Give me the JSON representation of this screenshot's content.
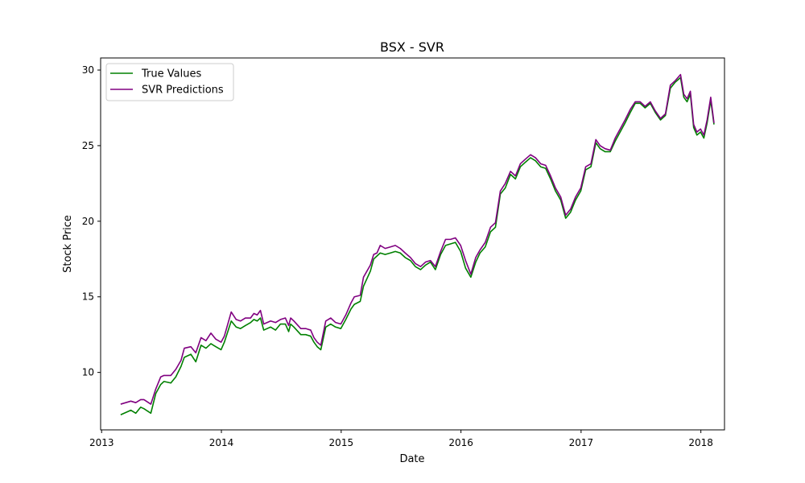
{
  "chart_data": {
    "type": "line",
    "title": "BSX - SVR",
    "xlabel": "Date",
    "ylabel": "Stock Price",
    "xlim": [
      "2012-12-29",
      "2018-03-14"
    ],
    "ylim": [
      6.2,
      30.8
    ],
    "x_ticks": [
      "2013",
      "2014",
      "2015",
      "2016",
      "2017",
      "2018"
    ],
    "y_ticks": [
      10,
      15,
      20,
      25,
      30
    ],
    "grid": false,
    "legend_position": "upper left",
    "series": [
      {
        "name": "True Values",
        "color": "#008000",
        "x": [
          "2013-02-28",
          "2013-03-31",
          "2013-04-15",
          "2013-04-30",
          "2013-05-10",
          "2013-05-31",
          "2013-06-15",
          "2013-06-30",
          "2013-07-10",
          "2013-07-31",
          "2013-08-15",
          "2013-08-31",
          "2013-09-10",
          "2013-09-30",
          "2013-10-15",
          "2013-10-31",
          "2013-11-15",
          "2013-11-30",
          "2013-12-15",
          "2013-12-31",
          "2014-01-10",
          "2014-01-31",
          "2014-02-15",
          "2014-02-28",
          "2014-03-15",
          "2014-03-31",
          "2014-04-10",
          "2014-04-20",
          "2014-04-30",
          "2014-05-10",
          "2014-05-31",
          "2014-06-15",
          "2014-06-30",
          "2014-07-15",
          "2014-07-25",
          "2014-07-31",
          "2014-08-10",
          "2014-08-31",
          "2014-09-15",
          "2014-09-30",
          "2014-10-10",
          "2014-10-20",
          "2014-10-31",
          "2014-11-15",
          "2014-11-30",
          "2014-12-15",
          "2014-12-31",
          "2015-01-15",
          "2015-01-31",
          "2015-02-10",
          "2015-02-28",
          "2015-03-10",
          "2015-03-31",
          "2015-04-10",
          "2015-04-20",
          "2015-04-30",
          "2015-05-15",
          "2015-05-31",
          "2015-06-15",
          "2015-06-30",
          "2015-07-15",
          "2015-07-31",
          "2015-08-15",
          "2015-08-31",
          "2015-09-15",
          "2015-09-30",
          "2015-10-15",
          "2015-10-31",
          "2015-11-15",
          "2015-11-30",
          "2015-12-15",
          "2015-12-31",
          "2016-01-15",
          "2016-01-31",
          "2016-02-15",
          "2016-02-28",
          "2016-03-15",
          "2016-03-31",
          "2016-04-15",
          "2016-04-30",
          "2016-05-15",
          "2016-05-31",
          "2016-06-15",
          "2016-06-30",
          "2016-07-15",
          "2016-07-31",
          "2016-08-15",
          "2016-08-31",
          "2016-09-15",
          "2016-09-30",
          "2016-10-15",
          "2016-10-31",
          "2016-11-15",
          "2016-11-30",
          "2016-12-15",
          "2016-12-31",
          "2017-01-15",
          "2017-01-31",
          "2017-02-15",
          "2017-02-28",
          "2017-03-15",
          "2017-03-31",
          "2017-04-15",
          "2017-04-30",
          "2017-05-15",
          "2017-05-31",
          "2017-06-15",
          "2017-06-30",
          "2017-07-15",
          "2017-07-31",
          "2017-08-15",
          "2017-08-31",
          "2017-09-15",
          "2017-09-30",
          "2017-10-15",
          "2017-10-31",
          "2017-11-10",
          "2017-11-20",
          "2017-11-30",
          "2017-12-10",
          "2017-12-20",
          "2017-12-31",
          "2018-01-10",
          "2018-01-20",
          "2018-01-31",
          "2018-02-10"
        ],
        "y": [
          7.2,
          7.5,
          7.3,
          7.7,
          7.6,
          7.3,
          8.6,
          9.2,
          9.4,
          9.3,
          9.7,
          10.4,
          11.0,
          11.2,
          10.7,
          11.8,
          11.6,
          11.9,
          11.7,
          11.5,
          12.0,
          13.4,
          13.0,
          12.9,
          13.1,
          13.3,
          13.5,
          13.4,
          13.6,
          12.8,
          13.0,
          12.8,
          13.2,
          13.2,
          12.7,
          13.2,
          13.0,
          12.5,
          12.5,
          12.4,
          12.0,
          11.7,
          11.5,
          13.0,
          13.2,
          13.0,
          12.9,
          13.5,
          14.2,
          14.5,
          14.7,
          15.7,
          16.7,
          17.5,
          17.7,
          17.9,
          17.8,
          17.9,
          18.0,
          17.9,
          17.6,
          17.4,
          17.0,
          16.8,
          17.1,
          17.3,
          16.8,
          17.8,
          18.4,
          18.5,
          18.6,
          18.0,
          16.9,
          16.3,
          17.3,
          17.9,
          18.3,
          19.3,
          19.6,
          21.8,
          22.2,
          23.1,
          22.8,
          23.6,
          23.9,
          24.2,
          24.0,
          23.6,
          23.5,
          22.8,
          22.0,
          21.4,
          20.2,
          20.6,
          21.4,
          22.0,
          23.4,
          23.6,
          25.2,
          24.8,
          24.6,
          24.6,
          25.3,
          25.9,
          26.5,
          27.2,
          27.8,
          27.8,
          27.5,
          27.8,
          27.2,
          26.7,
          27.0,
          28.8,
          29.2,
          29.5,
          28.2,
          27.9,
          28.4,
          26.2,
          25.7,
          25.9,
          25.5,
          26.5,
          28.0,
          26.4
        ]
      },
      {
        "name": "SVR Predictions",
        "color": "#800080",
        "x": [
          "2013-02-28",
          "2013-03-31",
          "2013-04-15",
          "2013-04-30",
          "2013-05-10",
          "2013-05-31",
          "2013-06-15",
          "2013-06-30",
          "2013-07-10",
          "2013-07-31",
          "2013-08-15",
          "2013-08-31",
          "2013-09-10",
          "2013-09-30",
          "2013-10-15",
          "2013-10-31",
          "2013-11-15",
          "2013-11-30",
          "2013-12-15",
          "2013-12-31",
          "2014-01-10",
          "2014-01-31",
          "2014-02-15",
          "2014-02-28",
          "2014-03-15",
          "2014-03-31",
          "2014-04-10",
          "2014-04-20",
          "2014-04-30",
          "2014-05-10",
          "2014-05-31",
          "2014-06-15",
          "2014-06-30",
          "2014-07-15",
          "2014-07-25",
          "2014-07-31",
          "2014-08-10",
          "2014-08-31",
          "2014-09-15",
          "2014-09-30",
          "2014-10-10",
          "2014-10-20",
          "2014-10-31",
          "2014-11-15",
          "2014-11-30",
          "2014-12-15",
          "2014-12-31",
          "2015-01-15",
          "2015-01-31",
          "2015-02-10",
          "2015-02-28",
          "2015-03-10",
          "2015-03-31",
          "2015-04-10",
          "2015-04-20",
          "2015-04-30",
          "2015-05-15",
          "2015-05-31",
          "2015-06-15",
          "2015-06-30",
          "2015-07-15",
          "2015-07-31",
          "2015-08-15",
          "2015-08-31",
          "2015-09-15",
          "2015-09-30",
          "2015-10-15",
          "2015-10-31",
          "2015-11-15",
          "2015-11-30",
          "2015-12-15",
          "2015-12-31",
          "2016-01-15",
          "2016-01-31",
          "2016-02-15",
          "2016-02-28",
          "2016-03-15",
          "2016-03-31",
          "2016-04-15",
          "2016-04-30",
          "2016-05-15",
          "2016-05-31",
          "2016-06-15",
          "2016-06-30",
          "2016-07-15",
          "2016-07-31",
          "2016-08-15",
          "2016-08-31",
          "2016-09-15",
          "2016-09-30",
          "2016-10-15",
          "2016-10-31",
          "2016-11-15",
          "2016-11-30",
          "2016-12-15",
          "2016-12-31",
          "2017-01-15",
          "2017-01-31",
          "2017-02-15",
          "2017-02-28",
          "2017-03-15",
          "2017-03-31",
          "2017-04-15",
          "2017-04-30",
          "2017-05-15",
          "2017-05-31",
          "2017-06-15",
          "2017-06-30",
          "2017-07-15",
          "2017-07-31",
          "2017-08-15",
          "2017-08-31",
          "2017-09-15",
          "2017-09-30",
          "2017-10-15",
          "2017-10-31",
          "2017-11-10",
          "2017-11-20",
          "2017-11-30",
          "2017-12-10",
          "2017-12-20",
          "2017-12-31",
          "2018-01-10",
          "2018-01-20",
          "2018-01-31",
          "2018-02-10"
        ],
        "y": [
          7.9,
          8.1,
          8.0,
          8.2,
          8.2,
          7.9,
          8.9,
          9.7,
          9.8,
          9.8,
          10.2,
          10.8,
          11.6,
          11.7,
          11.3,
          12.3,
          12.1,
          12.6,
          12.2,
          12.0,
          12.4,
          14.0,
          13.5,
          13.4,
          13.6,
          13.6,
          13.9,
          13.8,
          14.1,
          13.2,
          13.4,
          13.3,
          13.5,
          13.6,
          13.1,
          13.6,
          13.4,
          12.9,
          12.9,
          12.8,
          12.3,
          12.0,
          11.8,
          13.4,
          13.6,
          13.3,
          13.2,
          13.8,
          14.6,
          15.0,
          15.1,
          16.3,
          17.1,
          17.8,
          17.9,
          18.4,
          18.2,
          18.3,
          18.4,
          18.2,
          17.9,
          17.6,
          17.2,
          17.0,
          17.3,
          17.4,
          17.0,
          18.0,
          18.8,
          18.8,
          18.9,
          18.4,
          17.4,
          16.5,
          17.6,
          18.1,
          18.6,
          19.6,
          19.9,
          22.0,
          22.5,
          23.3,
          23.0,
          23.8,
          24.1,
          24.4,
          24.2,
          23.8,
          23.7,
          23.0,
          22.2,
          21.6,
          20.4,
          20.8,
          21.6,
          22.2,
          23.6,
          23.8,
          25.4,
          25.0,
          24.8,
          24.7,
          25.5,
          26.1,
          26.7,
          27.4,
          27.9,
          27.9,
          27.6,
          27.9,
          27.3,
          26.8,
          27.1,
          29.0,
          29.3,
          29.7,
          28.4,
          28.1,
          28.6,
          26.4,
          25.9,
          26.1,
          25.7,
          26.7,
          28.2,
          26.5
        ]
      }
    ]
  }
}
